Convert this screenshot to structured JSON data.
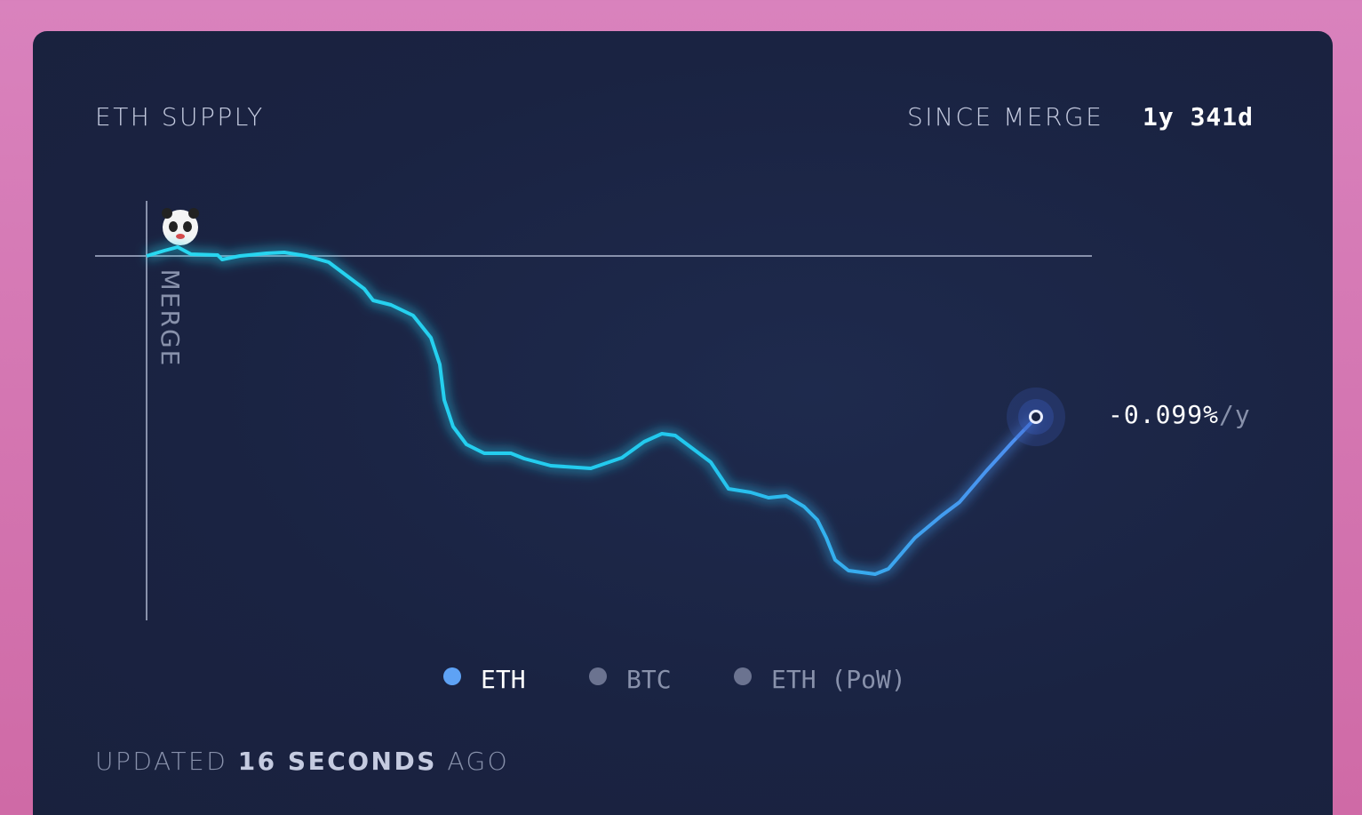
{
  "header": {
    "title": "ETH SUPPLY",
    "since_label": "SINCE MERGE",
    "since_value": "1y 341d"
  },
  "chart": {
    "marker_label": "MERGE",
    "current_rate": "-0.099%",
    "rate_unit": "/y"
  },
  "legend": [
    "ETH",
    "BTC",
    "ETH (PoW)"
  ],
  "footer": {
    "prefix": "UPDATED",
    "age": "16 SECONDS",
    "suffix": "AGO"
  }
}
